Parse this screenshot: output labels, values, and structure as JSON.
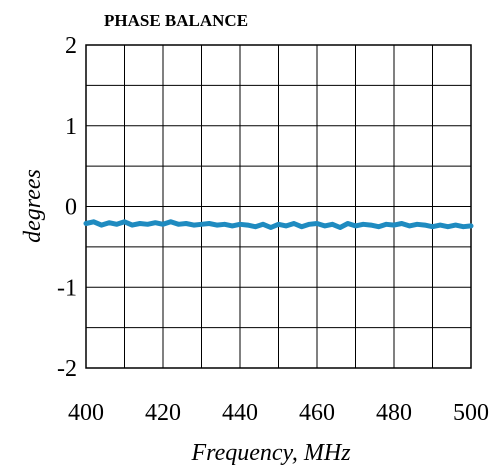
{
  "chart_data": {
    "type": "line",
    "title": "PHASE BALANCE",
    "xlabel": "Frequency, MHz",
    "ylabel": "degrees",
    "xlim": [
      400,
      500
    ],
    "ylim": [
      -2,
      2
    ],
    "x_ticks": [
      400,
      420,
      440,
      460,
      480,
      500
    ],
    "x_tick_labels": [
      "400",
      "420",
      "440",
      "460",
      "480",
      "500"
    ],
    "y_ticks": [
      -2,
      -1,
      0,
      1,
      2
    ],
    "y_tick_labels": [
      "-2",
      "-1",
      "0",
      "1",
      "2"
    ],
    "x_grid": [
      400,
      410,
      420,
      430,
      440,
      450,
      460,
      470,
      480,
      490,
      500
    ],
    "y_grid": [
      -2,
      -1.5,
      -1,
      -0.5,
      0,
      0.5,
      1,
      1.5,
      2
    ],
    "grid": true,
    "legend": "none",
    "series": [
      {
        "color": "#1f8bc0",
        "x": [
          400,
          402,
          404,
          406,
          408,
          410,
          412,
          414,
          416,
          418,
          420,
          422,
          424,
          426,
          428,
          430,
          432,
          434,
          436,
          438,
          440,
          442,
          444,
          446,
          448,
          450,
          452,
          454,
          456,
          458,
          460,
          462,
          464,
          466,
          468,
          470,
          472,
          474,
          476,
          478,
          480,
          482,
          484,
          486,
          488,
          490,
          492,
          494,
          496,
          498,
          500
        ],
        "values": [
          -0.21,
          -0.19,
          -0.23,
          -0.2,
          -0.22,
          -0.19,
          -0.23,
          -0.21,
          -0.22,
          -0.2,
          -0.22,
          -0.19,
          -0.22,
          -0.21,
          -0.23,
          -0.22,
          -0.21,
          -0.23,
          -0.22,
          -0.24,
          -0.22,
          -0.23,
          -0.25,
          -0.22,
          -0.26,
          -0.22,
          -0.24,
          -0.21,
          -0.25,
          -0.22,
          -0.21,
          -0.24,
          -0.22,
          -0.26,
          -0.21,
          -0.24,
          -0.22,
          -0.23,
          -0.25,
          -0.22,
          -0.23,
          -0.21,
          -0.24,
          -0.22,
          -0.23,
          -0.25,
          -0.23,
          -0.25,
          -0.23,
          -0.25,
          -0.24
        ]
      }
    ]
  }
}
